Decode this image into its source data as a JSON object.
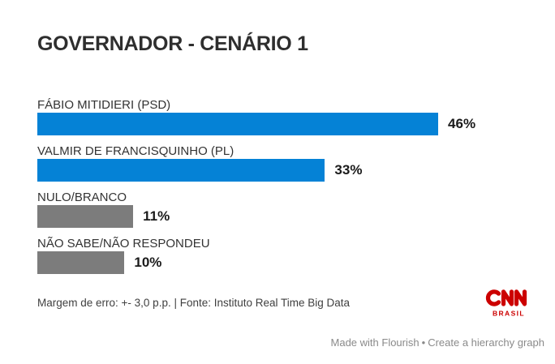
{
  "page": {
    "background": "#ffffff"
  },
  "header": {
    "title": "GOVERNADOR - CENÁRIO 1"
  },
  "chart_data": {
    "type": "bar",
    "orientation": "horizontal",
    "title": "GOVERNADOR - CENÁRIO 1",
    "categories": [
      "FÁBIO MITIDIERI (PSD)",
      "VALMIR DE FRANCISQUINHO (PL)",
      "NULO/BRANCO",
      "NÃO SABE/NÃO RESPONDEU"
    ],
    "values": [
      46,
      33,
      11,
      10
    ],
    "value_labels": [
      "46%",
      "33%",
      "11%",
      "10%"
    ],
    "bar_colors": [
      "#0582d6",
      "#0582d6",
      "#7c7c7c",
      "#7c7c7c"
    ],
    "xlim": [
      0,
      55
    ],
    "grid": false,
    "legend": "none",
    "value_label_position": "outside-end"
  },
  "footer": {
    "note": "Margem de erro: +- 3,0 p.p. | Fonte: Instituto Real Time Big Data"
  },
  "branding": {
    "name": "CNN Brasil",
    "logo_text": "CNN",
    "logo_subtext": "BRASIL",
    "logo_color": "#cc0000"
  },
  "attribution": {
    "made_with": "Made with Flourish",
    "separator": "•",
    "cta": "Create a hierarchy graph"
  }
}
